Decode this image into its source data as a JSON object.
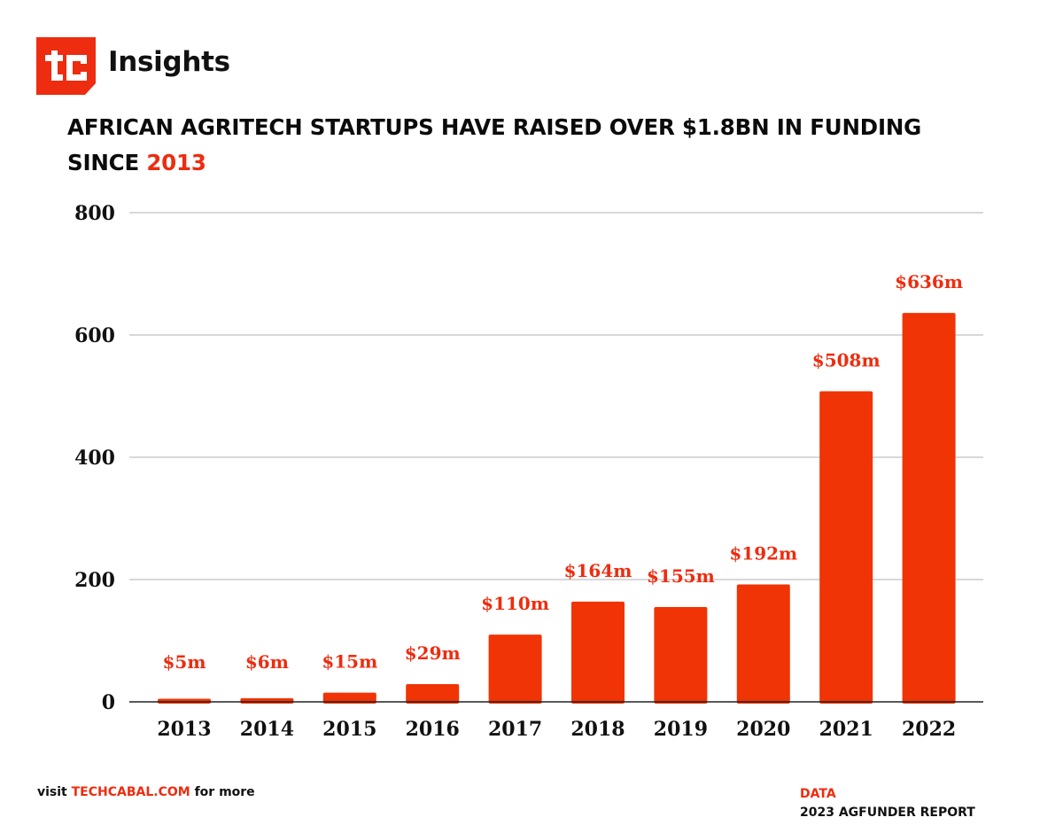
{
  "header": {
    "logo_text": "tc",
    "brand": "Insights"
  },
  "title": {
    "line1": "AFRICAN AGRITECH STARTUPS HAVE RAISED OVER $1.8BN IN FUNDING",
    "line2_prefix": "SINCE ",
    "line2_accent": "2013"
  },
  "colors": {
    "accent": "#ee2c0f",
    "bar": "#f03405",
    "text": "#111111",
    "grid": "#cccccc"
  },
  "chart_data": {
    "type": "bar",
    "title": "AFRICAN AGRITECH STARTUPS HAVE RAISED OVER $1.8BN IN FUNDING SINCE 2013",
    "xlabel": "",
    "ylabel": "",
    "categories": [
      "2013",
      "2014",
      "2015",
      "2016",
      "2017",
      "2018",
      "2019",
      "2020",
      "2021",
      "2022"
    ],
    "values": [
      5,
      6,
      15,
      29,
      110,
      164,
      155,
      192,
      508,
      636
    ],
    "data_labels": [
      "$5m",
      "$6m",
      "$15m",
      "$29m",
      "$110m",
      "$164m",
      "$155m",
      "$192m",
      "$508m",
      "$636m"
    ],
    "ylim": [
      0,
      800
    ],
    "yticks": [
      0,
      200,
      400,
      600,
      800
    ],
    "ytick_labels": [
      "0",
      "200",
      "400",
      "600",
      "800"
    ],
    "grid": true,
    "legend": "none",
    "units": "USD millions"
  },
  "footer": {
    "visit_prefix": "visit ",
    "visit_link": "TECHCABAL.COM",
    "visit_suffix": " for more",
    "source_label": "DATA",
    "source_value": "2023 AGFUNDER REPORT"
  }
}
